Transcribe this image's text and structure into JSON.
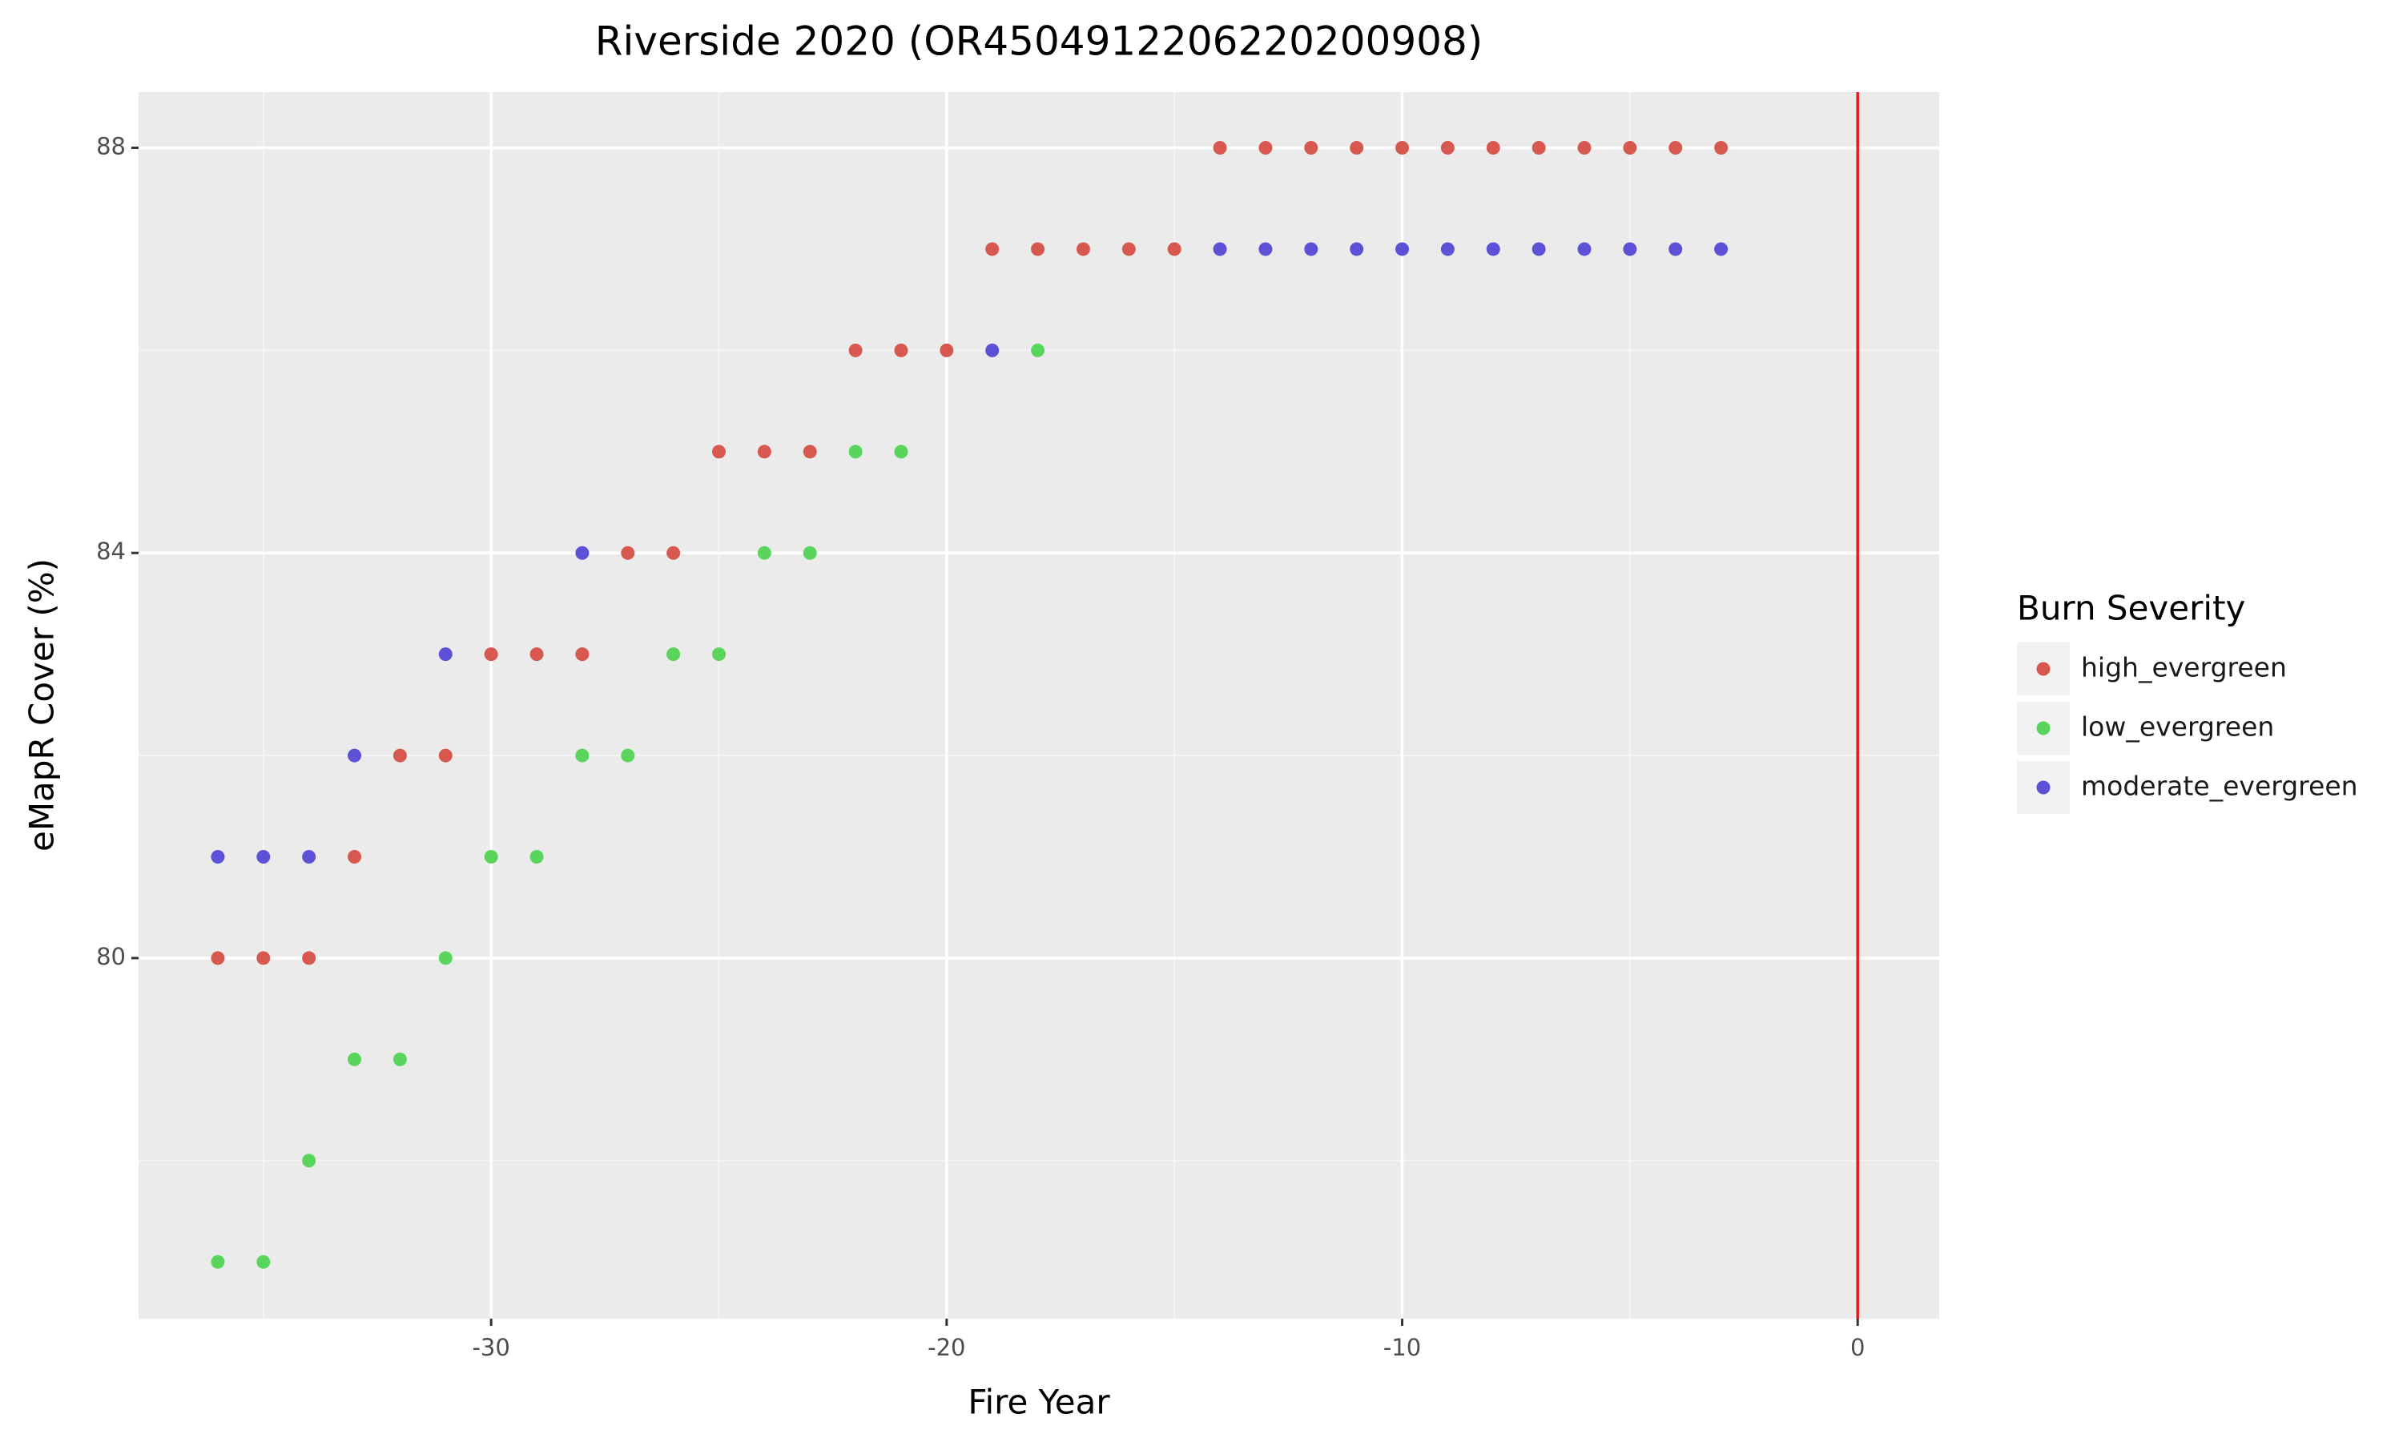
{
  "chart_data": {
    "type": "scatter",
    "title": "Riverside 2020 (OR4504912206220200908)",
    "x_label": "Fire Year",
    "y_label": "eMapR Cover (%)",
    "legend_title": "Burn Severity",
    "legend_position": "right",
    "xlim": [
      -37.74,
      1.79
    ],
    "ylim": [
      76.44,
      88.55
    ],
    "xticks": [
      -30,
      -20,
      -10,
      0
    ],
    "yticks": [
      80,
      84,
      88
    ],
    "xminor": [
      -35,
      -25,
      -15,
      -5
    ],
    "yminor": [
      78,
      82,
      86
    ],
    "grid": true,
    "vline": 0,
    "vline_color": "#e41a1c",
    "series": [
      {
        "name": "high_evergreen",
        "color": "#d6584f",
        "x": [
          -36,
          -35,
          -34,
          -33,
          -32,
          -31,
          -30,
          -29,
          -28,
          -27,
          -26,
          -25,
          -24,
          -23,
          -22,
          -21,
          -20,
          -19,
          -18,
          -17,
          -16,
          -15,
          -14,
          -13,
          -12,
          -11,
          -10,
          -9,
          -8,
          -7,
          -6,
          -5,
          -4,
          -3
        ],
        "values": [
          80,
          80,
          80,
          81,
          82,
          82,
          83,
          83,
          83,
          84,
          84,
          85,
          85,
          85,
          86,
          86,
          86,
          87,
          87,
          87,
          87,
          87,
          88,
          88,
          88,
          88,
          88,
          88,
          88,
          88,
          88,
          88,
          88,
          88
        ]
      },
      {
        "name": "low_evergreen",
        "color": "#5ad55c",
        "x": [
          -36,
          -35,
          -34,
          -33,
          -32,
          -31,
          -30,
          -29,
          -28,
          -27,
          -26,
          -25,
          -24,
          -23,
          -22,
          -21,
          -18
        ],
        "values": [
          77,
          77,
          78,
          79,
          79,
          80,
          81,
          81,
          82,
          82,
          83,
          83,
          84,
          84,
          85,
          85,
          86
        ]
      },
      {
        "name": "moderate_evergreen",
        "color": "#5c51d7",
        "x": [
          -36,
          -35,
          -34,
          -33,
          -31,
          -28,
          -19,
          -14,
          -13,
          -12,
          -11,
          -10,
          -9,
          -8,
          -7,
          -6,
          -5,
          -4,
          -3
        ],
        "values": [
          81,
          81,
          81,
          82,
          83,
          84,
          86,
          87,
          87,
          87,
          87,
          87,
          87,
          87,
          87,
          87,
          87,
          87,
          87
        ]
      }
    ]
  }
}
